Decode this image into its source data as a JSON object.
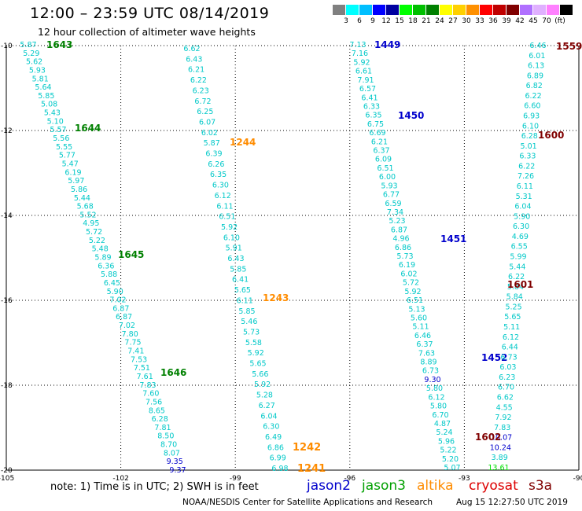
{
  "header": {
    "title": "12:00 – 23:59 UTC 08/14/2019",
    "subtitle": "12 hour collection of altimeter wave heights"
  },
  "scale": {
    "colors": [
      "#808080",
      "#00ffff",
      "#00bfff",
      "#0000ff",
      "#0000a0",
      "#00ff00",
      "#00c000",
      "#008000",
      "#ffff00",
      "#ffd000",
      "#ff9000",
      "#ff0000",
      "#c00000",
      "#800000",
      "#b070ff",
      "#e0b0ff",
      "#ff80ff",
      "#000000"
    ],
    "labels": [
      "3",
      "6",
      "9",
      "12",
      "15",
      "18",
      "21",
      "24",
      "27",
      "30",
      "33",
      "36",
      "39",
      "42",
      "45",
      "70",
      "(ft)"
    ]
  },
  "axes": {
    "lon_labels": [
      "-105",
      "-102",
      "-99",
      "-96",
      "-93",
      "-90"
    ],
    "lat_labels": [
      "-10",
      "-12",
      "-14",
      "-16",
      "-18",
      "-20"
    ]
  },
  "tracks": [
    {
      "satellite": "jason3",
      "color": "#00c8c8",
      "label_color": "#008000",
      "values": [
        "5.87",
        "5.29",
        "5.62",
        "5.93",
        "5.81",
        "5.64",
        "5.85",
        "5.08",
        "5.43",
        "5.10",
        "5.57",
        "5.56",
        "5.55",
        "5.77",
        "5.47",
        "6.19",
        "5.97",
        "5.86",
        "5.44",
        "5.68",
        "5.52",
        "4.95",
        "5.72",
        "5.22",
        "5.48",
        "5.89",
        "6.36",
        "5.88",
        "6.45",
        "5.90",
        "7.02",
        "6.87",
        "6.87",
        "7.02",
        "7.80",
        "7.75",
        "7.41",
        "7.53",
        "7.51",
        "7.61",
        "7.83",
        "7.60",
        "7.56",
        "8.65",
        "6.28",
        "7.81",
        "8.50",
        "8.70",
        "8.07",
        "9.35",
        "9.37"
      ],
      "colored_values": [
        "9.35",
        "9.37"
      ],
      "time_labels": [
        "1643",
        "1644",
        "1645",
        "1646"
      ]
    },
    {
      "satellite": "altika",
      "color": "#00c8c8",
      "label_color": "#ff8c00",
      "values": [
        "6.62",
        "6.43",
        "6.21",
        "6.22",
        "6.23",
        "6.72",
        "6.25",
        "6.07",
        "6.02",
        "5.87",
        "6.39",
        "6.26",
        "6.35",
        "6.30",
        "6.12",
        "6.11",
        "6.51",
        "5.92",
        "6.10",
        "5.91",
        "6.43",
        "5.85",
        "6.41",
        "5.65",
        "6.11",
        "5.85",
        "5.46",
        "5.73",
        "5.58",
        "5.92",
        "5.65",
        "5.66",
        "5.92",
        "5.28",
        "6.27",
        "6.04",
        "6.30",
        "6.49",
        "6.86",
        "6.99",
        "6.98"
      ],
      "time_labels": [
        "1244",
        "1243",
        "1242",
        "1241"
      ]
    },
    {
      "satellite": "jason2",
      "color": "#00c8c8",
      "label_color": "#0000cc",
      "values": [
        "7.13",
        "7.16",
        "5.92",
        "6.61",
        "7.91",
        "6.57",
        "6.41",
        "6.33",
        "6.35",
        "6.75",
        "6.69",
        "6.21",
        "6.37",
        "6.09",
        "6.51",
        "6.00",
        "5.93",
        "6.77",
        "6.59",
        "7.34",
        "5.23",
        "6.87",
        "4.96",
        "6.86",
        "5.73",
        "6.19",
        "6.02",
        "5.72",
        "5.92",
        "6.51",
        "5.13",
        "5.60",
        "5.11",
        "6.46",
        "6.37",
        "7.63",
        "8.89",
        "6.73",
        "9.30",
        "5.80",
        "6.12",
        "5.80",
        "6.70",
        "4.87",
        "5.24",
        "5.96",
        "5.22",
        "5.20",
        "5.07"
      ],
      "colored_values": [
        "9.30"
      ],
      "time_labels": [
        "1449",
        "1450",
        "1451",
        "1452"
      ]
    },
    {
      "satellite": "s3a",
      "color": "#00c8c8",
      "label_color": "#800000",
      "values": [
        "6.46",
        "6.01",
        "6.13",
        "6.89",
        "6.82",
        "6.22",
        "6.60",
        "6.93",
        "6.10",
        "6.28",
        "5.01",
        "6.33",
        "6.22",
        "7.26",
        "6.11",
        "5.31",
        "6.04",
        "5.90",
        "6.30",
        "4.69",
        "6.55",
        "5.99",
        "5.44",
        "6.22",
        "5.84",
        "5.84",
        "5.25",
        "5.65",
        "5.11",
        "6.12",
        "6.44",
        "6.73",
        "6.03",
        "6.23",
        "6.70",
        "6.62",
        "4.55",
        "7.92",
        "7.83",
        "10.07",
        "10.24",
        "3.89",
        "13.61"
      ],
      "colored_values": [
        "10.07",
        "10.24",
        "13.61"
      ],
      "time_labels": [
        "1559",
        "1600",
        "1601",
        "1602"
      ]
    }
  ],
  "footer": {
    "note": "note:  1) Time is in UTC;  2) SWH is in feet",
    "legend": [
      {
        "name": "jason2",
        "color": "#0000cc"
      },
      {
        "name": "jason3",
        "color": "#00a000"
      },
      {
        "name": "altika",
        "color": "#ff8c00"
      },
      {
        "name": "cryosat",
        "color": "#dd0000"
      },
      {
        "name": "s3a",
        "color": "#800000"
      }
    ],
    "credit": "NOAA/NESDIS Center for Satellite Applications and Research",
    "stamp": "Aug 15 12:27:50 UTC 2019"
  }
}
